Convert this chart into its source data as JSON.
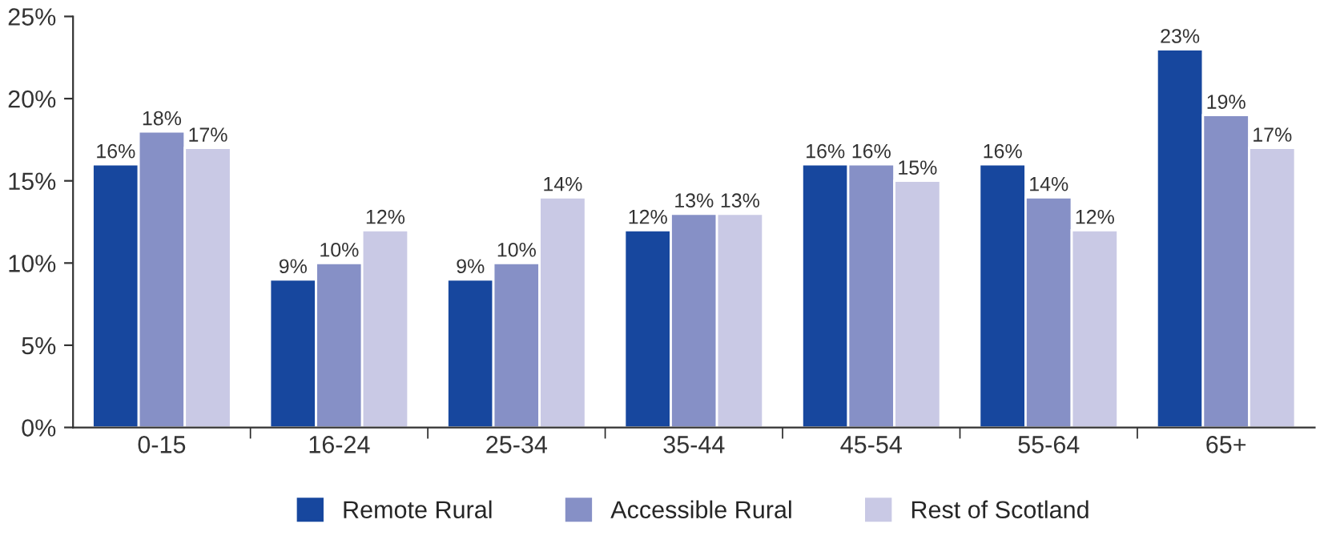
{
  "chart_data": {
    "type": "bar",
    "categories": [
      "0-15",
      "16-24",
      "25-34",
      "35-44",
      "45-54",
      "55-64",
      "65+"
    ],
    "series": [
      {
        "name": "Remote Rural",
        "color": "#17479e",
        "values": [
          16,
          9,
          9,
          12,
          16,
          16,
          23
        ],
        "value_labels": [
          "16%",
          "9%",
          "9%",
          "12%",
          "16%",
          "16%",
          "23%"
        ]
      },
      {
        "name": "Accessible Rural",
        "color": "#8690c6",
        "values": [
          18,
          10,
          10,
          13,
          16,
          14,
          19
        ],
        "value_labels": [
          "18%",
          "10%",
          "10%",
          "13%",
          "16%",
          "14%",
          "19%"
        ]
      },
      {
        "name": "Rest of Scotland",
        "color": "#c9c9e5",
        "values": [
          17,
          12,
          14,
          13,
          15,
          12,
          17
        ],
        "value_labels": [
          "17%",
          "12%",
          "14%",
          "13%",
          "15%",
          "12%",
          "17%"
        ]
      }
    ],
    "ylim": [
      0,
      25
    ],
    "yticks": [
      {
        "value": 0,
        "label": "0%"
      },
      {
        "value": 5,
        "label": "5%"
      },
      {
        "value": 10,
        "label": "10%"
      },
      {
        "value": 15,
        "label": "15%"
      },
      {
        "value": 20,
        "label": "20%"
      },
      {
        "value": 25,
        "label": "25%"
      }
    ],
    "grid": false,
    "legend": "bottom"
  }
}
